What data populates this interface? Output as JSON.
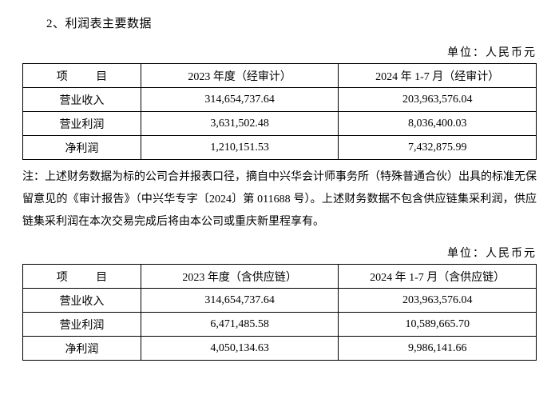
{
  "section_title": "2、利润表主要数据",
  "unit_label": "单位：人民币元",
  "table1": {
    "headers": {
      "col0": "项    目",
      "col1": "2023 年度（经审计）",
      "col2": "2024 年 1-7 月（经审计）"
    },
    "rows": [
      {
        "label": "营业收入",
        "c1": "314,654,737.64",
        "c2": "203,963,576.04"
      },
      {
        "label": "营业利润",
        "c1": "3,631,502.48",
        "c2": "8,036,400.03"
      },
      {
        "label": "净利润",
        "c1": "1,210,151.53",
        "c2": "7,432,875.99"
      }
    ]
  },
  "note": "注：上述财务数据为标的公司合并报表口径，摘自中兴华会计师事务所（特殊普通合伙）出具的标准无保留意见的《审计报告》（中兴华专字〔2024〕第 011688 号）。上述财务数据不包含供应链集采利润，供应链集采利润在本次交易完成后将由本公司或重庆新里程享有。",
  "table2": {
    "headers": {
      "col0": "项    目",
      "col1": "2023 年度（含供应链）",
      "col2": "2024 年 1-7 月（含供应链）"
    },
    "rows": [
      {
        "label": "营业收入",
        "c1": "314,654,737.64",
        "c2": "203,963,576.04"
      },
      {
        "label": "营业利润",
        "c1": "6,471,485.58",
        "c2": "10,589,665.70"
      },
      {
        "label": "净利润",
        "c1": "4,050,134.63",
        "c2": "9,986,141.66"
      }
    ]
  }
}
